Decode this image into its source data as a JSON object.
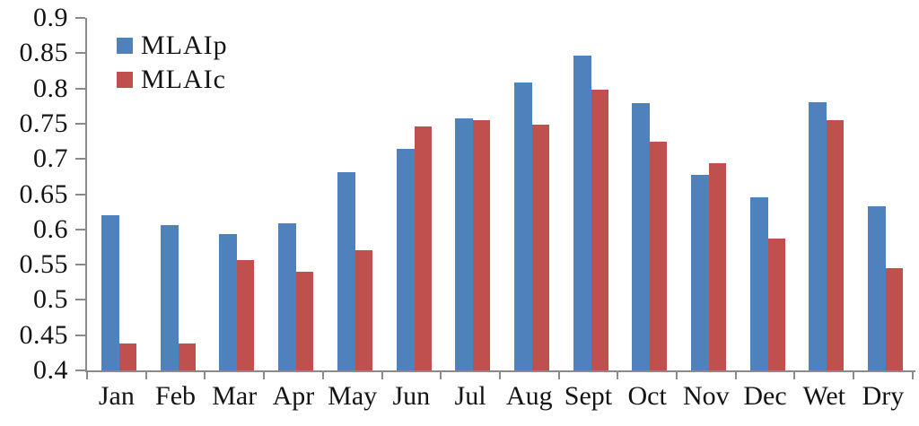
{
  "chart_data": {
    "type": "bar",
    "title": "",
    "xlabel": "",
    "ylabel": "",
    "categories": [
      "Jan",
      "Feb",
      "Mar",
      "Apr",
      "May",
      "Jun",
      "Jul",
      "Aug",
      "Sept",
      "Oct",
      "Nov",
      "Dec",
      "Wet",
      "Dry"
    ],
    "series": [
      {
        "name": "MLAIp",
        "color": "#4F81BD",
        "values": [
          0.62,
          0.606,
          0.594,
          0.609,
          0.681,
          0.714,
          0.758,
          0.809,
          0.847,
          0.779,
          0.677,
          0.645,
          0.781,
          0.633
        ]
      },
      {
        "name": "MLAIc",
        "color": "#C0504D",
        "values": [
          0.438,
          0.438,
          0.556,
          0.54,
          0.571,
          0.746,
          0.755,
          0.748,
          0.798,
          0.724,
          0.694,
          0.587,
          0.755,
          0.545
        ]
      }
    ],
    "ylim": [
      0.4,
      0.9
    ],
    "y_tick_step": 0.05,
    "y_tick_labels": [
      "0.9",
      "0.85",
      "0.8",
      "0.75",
      "0.7",
      "0.65",
      "0.6",
      "0.55",
      "0.5",
      "0.45",
      "0.4"
    ],
    "grid": false,
    "legend_position": "top-left"
  },
  "colors": {
    "series_mlaip": "#4F81BD",
    "series_mlaic": "#C0504D",
    "axis": "#8a8a8a",
    "text": "#141414",
    "background": "#ffffff"
  }
}
